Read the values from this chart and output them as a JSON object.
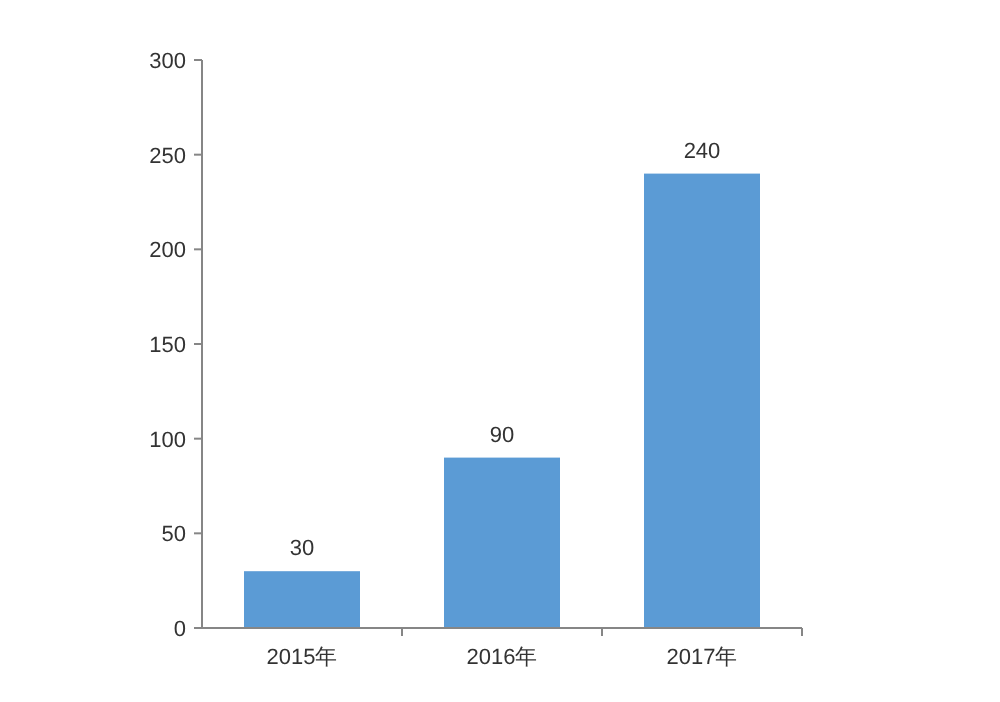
{
  "chart_data": {
    "type": "bar",
    "categories": [
      "2015年",
      "2016年",
      "2017年"
    ],
    "values": [
      30,
      90,
      240
    ],
    "color": "#5b9bd5",
    "ylim": [
      0,
      300
    ],
    "yticks": [
      0,
      50,
      100,
      150,
      200,
      250,
      300
    ],
    "grid": false,
    "data_labels": true
  }
}
